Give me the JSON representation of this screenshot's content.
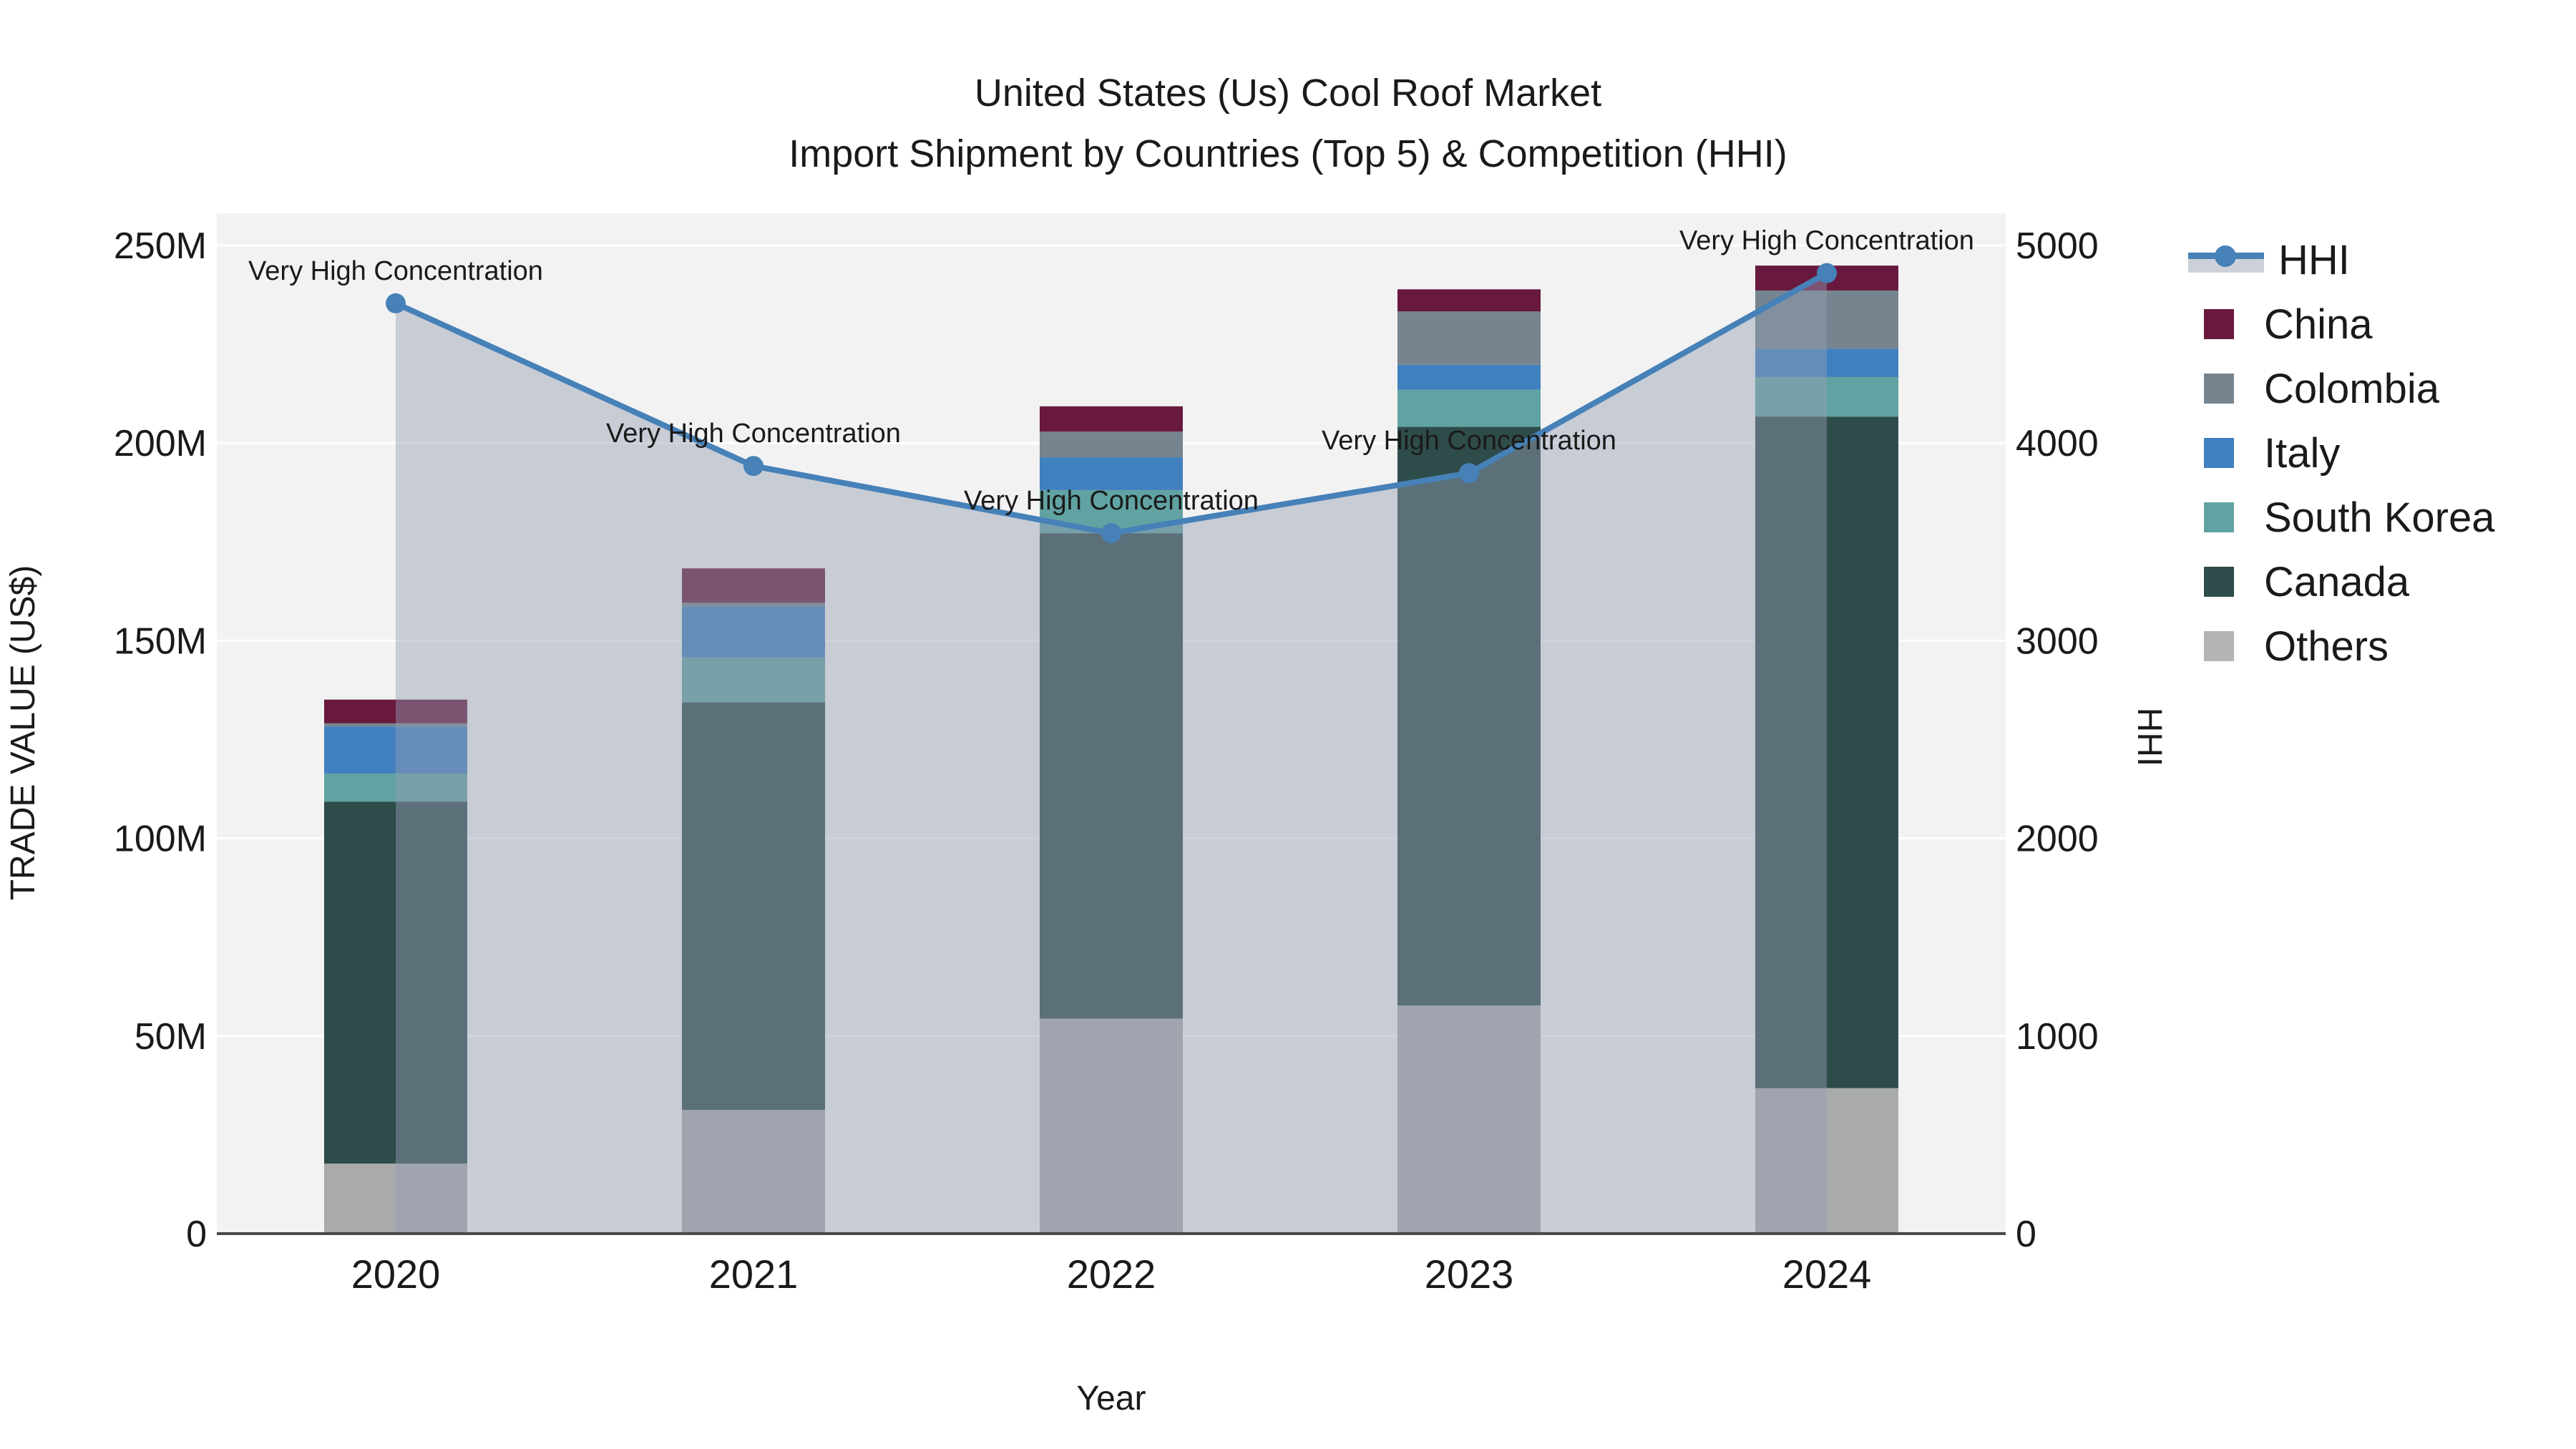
{
  "title": {
    "line1": "United States (Us) Cool Roof Market",
    "line2": "Import Shipment by Countries (Top 5) & Competition (HHI)"
  },
  "axes": {
    "x_label": "Year",
    "y_left_label": "TRADE VALUE (US$)",
    "y_right_label": "HHI"
  },
  "legend": [
    {
      "label": "HHI",
      "type": "line",
      "color": "#4681b8"
    },
    {
      "label": "China",
      "type": "box",
      "color": "#68193d"
    },
    {
      "label": "Colombia",
      "type": "box",
      "color": "#76848f"
    },
    {
      "label": "Italy",
      "type": "box",
      "color": "#4180be"
    },
    {
      "label": "South Korea",
      "type": "box",
      "color": "#61a3a3"
    },
    {
      "label": "Canada",
      "type": "box",
      "color": "#2e4c4a"
    },
    {
      "label": "Others",
      "type": "box",
      "color": "#b3b4b6"
    }
  ],
  "chart_data": {
    "type": "bar",
    "stacked": true,
    "title": "United States (Us) Cool Roof Market — Import Shipment by Countries (Top 5) & Competition (HHI)",
    "categories": [
      "2020",
      "2021",
      "2022",
      "2023",
      "2024"
    ],
    "value_unit": "Million US$",
    "series": [
      {
        "name": "Others",
        "color": "#a9aaac",
        "values": [
          17.7,
          31.3,
          54.4,
          57.7,
          36.8
        ]
      },
      {
        "name": "Canada",
        "color": "#2e4c4a",
        "values": [
          91.6,
          103.1,
          122.8,
          146.4,
          169.9
        ]
      },
      {
        "name": "South Korea",
        "color": "#61a3a3",
        "values": [
          7.1,
          11.4,
          10.9,
          9.4,
          10.0
        ]
      },
      {
        "name": "Italy",
        "color": "#4180be",
        "values": [
          11.9,
          12.8,
          8.3,
          6.3,
          7.2
        ]
      },
      {
        "name": "Colombia",
        "color": "#76848f",
        "values": [
          0.8,
          1.0,
          6.5,
          13.5,
          14.7
        ]
      },
      {
        "name": "China",
        "color": "#68193d",
        "values": [
          6.0,
          8.7,
          6.4,
          5.6,
          6.3
        ]
      }
    ],
    "bar_totals": [
      135.1,
      168.3,
      209.3,
      238.9,
      244.9
    ],
    "line": {
      "name": "HHI",
      "color": "#4681b8",
      "area_fill": "rgba(146,158,178,0.45)",
      "values": [
        4707,
        3884,
        3544,
        3848,
        4860
      ]
    },
    "annotations": [
      "Very High Concentration",
      "Very High Concentration",
      "Very High Concentration",
      "Very High Concentration",
      "Very High Concentration"
    ],
    "y_left": {
      "label": "TRADE VALUE (US$)",
      "min": 0,
      "max": 250,
      "ticks": [
        0,
        50,
        100,
        150,
        200,
        250
      ],
      "tick_labels": [
        "0",
        "50M",
        "100M",
        "150M",
        "200M",
        "250M"
      ]
    },
    "y_right": {
      "label": "HHI",
      "min": 0,
      "max": 5000,
      "ticks": [
        0,
        1000,
        2000,
        3000,
        4000,
        5000
      ],
      "tick_labels": [
        "0",
        "1000",
        "2000",
        "3000",
        "4000",
        "5000"
      ]
    },
    "x_label": "Year",
    "grid": true,
    "legend_position": "right",
    "plot_background": "#f2f2f2"
  }
}
